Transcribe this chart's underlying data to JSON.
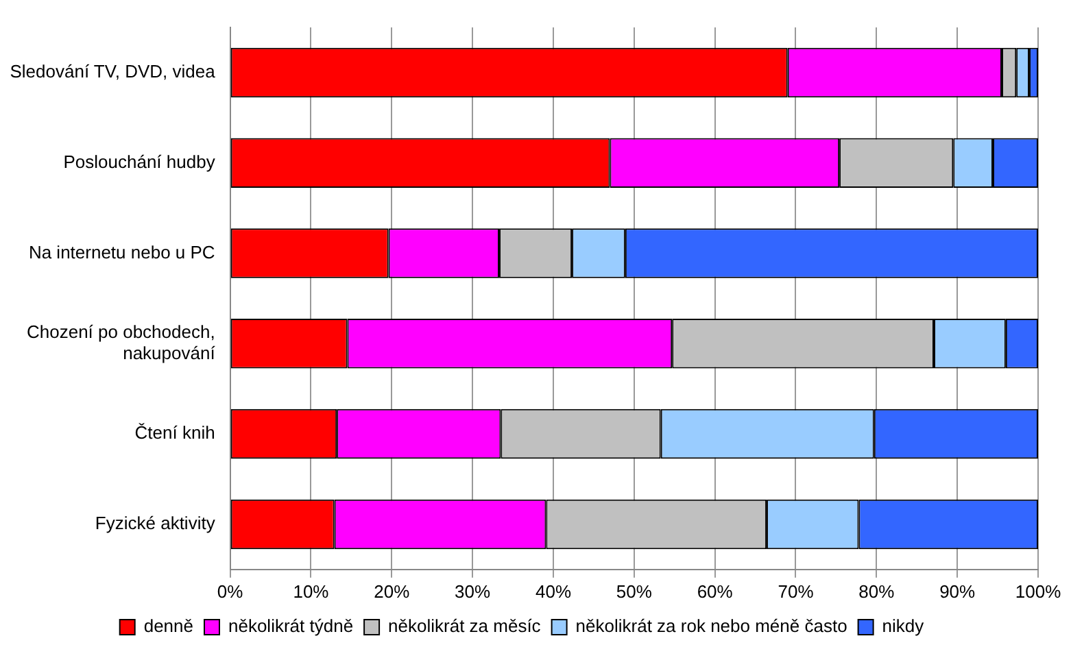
{
  "chart_data": {
    "type": "bar",
    "orientation": "horizontal",
    "stacked": true,
    "categories": [
      "Sledování TV, DVD, videa",
      "Poslouchání hudby",
      "Na internetu nebo u PC",
      "Chození po obchodech, nakupování",
      "Čtení knih",
      "Fyzické aktivity"
    ],
    "series": [
      {
        "name": "denně",
        "color": "#ff0000",
        "values": [
          69,
          47,
          19.6,
          14.5,
          13.2,
          12.9
        ]
      },
      {
        "name": "několikrát týdně",
        "color": "#ff00ff",
        "values": [
          26.5,
          28.4,
          13.7,
          40.2,
          20.3,
          26.2
        ]
      },
      {
        "name": "několikrát za měsíc",
        "color": "#c0c0c0",
        "values": [
          1.8,
          14.1,
          9,
          32.4,
          19.8,
          27.3
        ]
      },
      {
        "name": "několikrát za rok nebo méně často",
        "color": "#99ccff",
        "values": [
          1.6,
          4.9,
          6.6,
          8.9,
          26.4,
          11.4
        ]
      },
      {
        "name": "nikdy",
        "color": "#3366ff",
        "values": [
          1.1,
          5.6,
          51.1,
          4,
          20.3,
          22.2
        ]
      }
    ],
    "xlim": [
      0,
      100
    ],
    "xticks": [
      {
        "value": 0,
        "label": "0%"
      },
      {
        "value": 10,
        "label": "10%"
      },
      {
        "value": 20,
        "label": "20%"
      },
      {
        "value": 30,
        "label": "30%"
      },
      {
        "value": 40,
        "label": "40%"
      },
      {
        "value": 50,
        "label": "50%"
      },
      {
        "value": 60,
        "label": "60%"
      },
      {
        "value": 70,
        "label": "70%"
      },
      {
        "value": 80,
        "label": "80%"
      },
      {
        "value": 90,
        "label": "90%"
      },
      {
        "value": 100,
        "label": "100%"
      }
    ],
    "grid": "x",
    "legend": "bottom"
  }
}
